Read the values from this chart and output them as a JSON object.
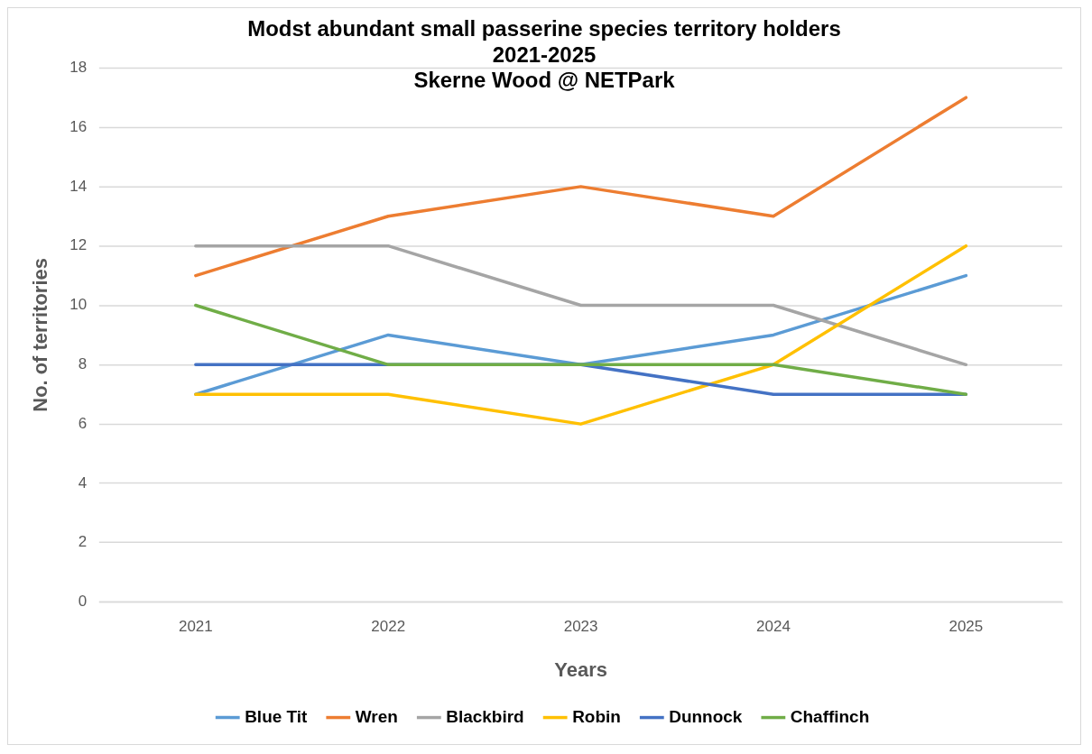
{
  "chart_data": {
    "type": "line",
    "title": "Modst abundant small passerine species territory holders\n2021-2025\nSkerne Wood @ NETPark",
    "xlabel": "Years",
    "ylabel": "No. of territories",
    "categories": [
      "2021",
      "2022",
      "2023",
      "2024",
      "2025"
    ],
    "series": [
      {
        "name": "Blue Tit",
        "color": "#5b9bd5",
        "values": [
          7,
          9,
          8,
          9,
          11
        ]
      },
      {
        "name": "Wren",
        "color": "#ed7d31",
        "values": [
          11,
          13,
          14,
          13,
          17
        ]
      },
      {
        "name": "Blackbird",
        "color": "#a5a5a5",
        "values": [
          12,
          12,
          10,
          10,
          8
        ]
      },
      {
        "name": "Robin",
        "color": "#ffc000",
        "values": [
          7,
          7,
          6,
          8,
          12
        ]
      },
      {
        "name": "Dunnock",
        "color": "#4472c4",
        "values": [
          8,
          8,
          8,
          7,
          7
        ]
      },
      {
        "name": "Chaffinch",
        "color": "#70ad47",
        "values": [
          10,
          8,
          8,
          8,
          7
        ]
      }
    ],
    "ylim": [
      0,
      18
    ],
    "yticks": [
      0,
      2,
      4,
      6,
      8,
      10,
      12,
      14,
      16,
      18
    ],
    "grid": "y",
    "legend": "bottom",
    "line_style": "solid"
  }
}
